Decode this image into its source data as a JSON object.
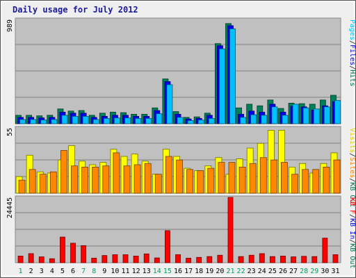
{
  "chart_data": {
    "type": "bar",
    "title": "Daily usage for July 2012",
    "x": [
      "1",
      "2",
      "3",
      "4",
      "5",
      "6",
      "7",
      "8",
      "9",
      "10",
      "11",
      "12",
      "13",
      "14",
      "15",
      "16",
      "17",
      "18",
      "19",
      "20",
      "21",
      "22",
      "23",
      "24",
      "25",
      "26",
      "27",
      "28",
      "29",
      "30",
      "31"
    ],
    "weekend_days": [
      "1",
      "7",
      "8",
      "14",
      "15",
      "21",
      "22",
      "28",
      "29"
    ],
    "panels": [
      {
        "id": "top",
        "ymax": 989,
        "ymax_label": "989",
        "axis_label": [
          "Pages",
          "/",
          "Files",
          "/",
          "Hits"
        ],
        "axis_colors": [
          "#00c0ff",
          "#222222",
          "#0000cc",
          "#222222",
          "#007050"
        ],
        "series": [
          {
            "name": "Hits",
            "color": "#00805a",
            "values": [
              80,
              80,
              75,
              80,
              140,
              120,
              125,
              80,
              100,
              110,
              105,
              90,
              90,
              150,
              425,
              115,
              60,
              65,
              100,
              760,
              950,
              150,
              185,
              170,
              225,
              145,
              195,
              190,
              185,
              225,
              270
            ]
          },
          {
            "name": "Files",
            "color": "#0000ee",
            "values": [
              60,
              60,
              55,
              60,
              110,
              100,
              100,
              60,
              70,
              80,
              80,
              70,
              70,
              125,
              400,
              90,
              45,
              50,
              80,
              740,
              930,
              90,
              120,
              110,
              185,
              110,
              165,
              160,
              130,
              170,
              210
            ]
          },
          {
            "name": "Pages",
            "color": "#00c0ff",
            "values": [
              40,
              40,
              35,
              40,
              80,
              70,
              70,
              40,
              50,
              55,
              55,
              50,
              50,
              95,
              370,
              60,
              30,
              35,
              50,
              710,
              900,
              60,
              85,
              80,
              160,
              80,
              185,
              150,
              140,
              160,
              220
            ]
          }
        ]
      },
      {
        "id": "mid",
        "ymax": 55,
        "ymax_label": "55",
        "axis_label": [
          "Visits",
          "/",
          "Sites",
          "/",
          "KB Out"
        ],
        "axis_colors": [
          "#e0d000",
          "#222222",
          "#ff8000",
          "#222222",
          "#007050"
        ],
        "series": [
          {
            "name": "Visits",
            "color": "#ffff00",
            "values": [
              14,
              32,
              18,
              17,
              28,
              40,
              27,
              24,
              26,
              37,
              31,
              33,
              27,
              16,
              37,
              31,
              21,
              19,
              23,
              30,
              16,
              29,
              38,
              42,
              53,
              53,
              22,
              25,
              17,
              25,
              34
            ]
          },
          {
            "name": "Sites",
            "color": "#ff8800",
            "values": [
              11,
              20,
              16,
              18,
              36,
              23,
              22,
              22,
              23,
              34,
              23,
              24,
              25,
              16,
              31,
              28,
              20,
              19,
              21,
              26,
              26,
              22,
              25,
              30,
              28,
              26,
              16,
              20,
              20,
              22,
              28
            ]
          }
        ]
      },
      {
        "id": "bottom",
        "ymax": 24445,
        "ymax_label": "24445",
        "axis_label": [
          "KB F",
          "/",
          "KB In",
          "/",
          "KB Out"
        ],
        "axis_colors": [
          "#ff0000",
          "#222222",
          "#0000cc",
          "#222222",
          "#007050"
        ],
        "series": [
          {
            "name": "KB F",
            "color": "#ff0000",
            "values": [
              2500,
              3400,
              2200,
              1500,
              9600,
              7300,
              6400,
              1700,
              2700,
              3000,
              3000,
              2500,
              3300,
              1800,
              12000,
              3000,
              1700,
              2000,
              2300,
              2800,
              24445,
              2300,
              2800,
              3400,
              2300,
              2500,
              2200,
              2400,
              2300,
              9200,
              3000
            ]
          }
        ]
      }
    ]
  }
}
